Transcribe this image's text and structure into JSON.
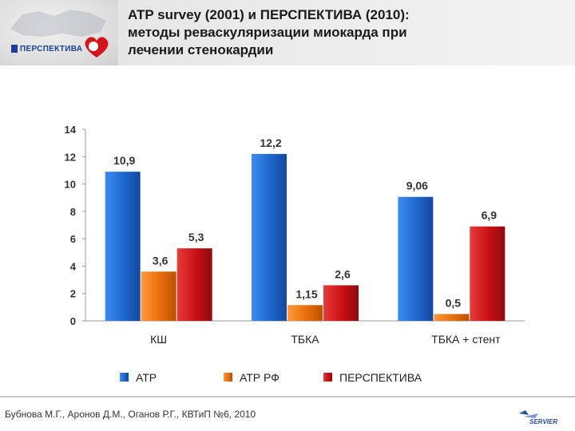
{
  "header": {
    "logo_text": "ПЕРСПЕКТИВА",
    "title_lines": [
      "ATP survey (2001) и ПЕРСПЕКТИВА (2010):",
      "методы реваскуляризации миокарда при",
      "лечении стенокардии"
    ]
  },
  "footer": {
    "citation": "Бубнова М.Г., Аронов Д.М., Оганов Р.Г., КВТиП №6, 2010",
    "brand": "SERVIER"
  },
  "colors": {
    "ATP": "#1f66cc",
    "ATP_RF": "#e86d0c",
    "PERSPEKTIVA": "#c80f14"
  },
  "chart_data": {
    "type": "bar",
    "categories": [
      "КШ",
      "ТБКА",
      "ТБКА + стент"
    ],
    "series": [
      {
        "name": "АТР",
        "values": [
          10.9,
          12.2,
          9.06
        ],
        "labels": [
          "10,9",
          "12,2",
          "9,06"
        ]
      },
      {
        "name": "АТР РФ",
        "values": [
          3.6,
          1.15,
          0.5
        ],
        "labels": [
          "3,6",
          "1,15",
          "0,5"
        ]
      },
      {
        "name": "ПЕРСПЕКТИВА",
        "values": [
          5.3,
          2.6,
          6.9
        ],
        "labels": [
          "5,3",
          "2,6",
          "6,9"
        ]
      }
    ],
    "ylim": [
      0,
      14
    ],
    "yticks": [
      0,
      2,
      4,
      6,
      8,
      10,
      12,
      14
    ],
    "grid": false,
    "legend_position": "bottom"
  }
}
